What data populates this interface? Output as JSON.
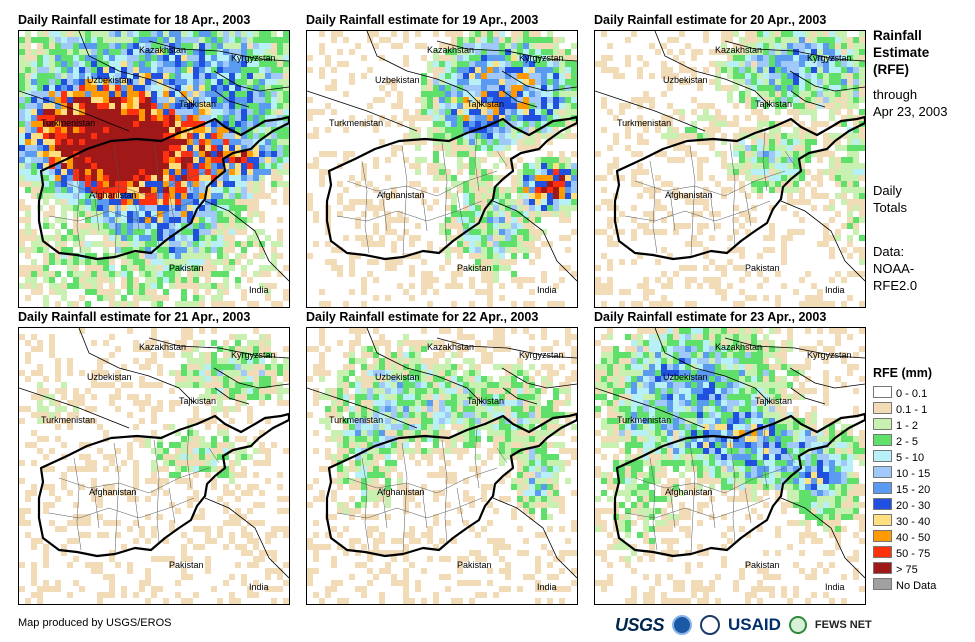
{
  "panels": [
    {
      "title": "Daily Rainfall estimate for 18 Apr., 2003",
      "pattern": "p18"
    },
    {
      "title": "Daily Rainfall estimate for 19 Apr., 2003",
      "pattern": "p19"
    },
    {
      "title": "Daily Rainfall estimate for 20 Apr., 2003",
      "pattern": "p20"
    },
    {
      "title": "Daily Rainfall estimate for 21 Apr., 2003",
      "pattern": "p21"
    },
    {
      "title": "Daily Rainfall estimate for 22 Apr., 2003",
      "pattern": "p22"
    },
    {
      "title": "Daily Rainfall estimate for 23 Apr., 2003",
      "pattern": "p23"
    }
  ],
  "map_labels": {
    "kazakhstan": "Kazakhstan",
    "kyrgyzstan": "Kyrgyzstan",
    "uzbekistan": "Uzbekistan",
    "tajikistan": "Tajikistan",
    "turkmenistan": "Turkmenistan",
    "afghanistan": "Afghanistan",
    "pakistan": "Pakistan",
    "india": "India"
  },
  "side": {
    "title_line1": "Rainfall",
    "title_line2": "Estimate",
    "title_line3": "(RFE)",
    "through": "through",
    "through_date": "Apr 23, 2003",
    "daily": "Daily",
    "totals": "Totals",
    "data_label": "Data:",
    "data_source1": "NOAA-",
    "data_source2": "RFE2.0"
  },
  "legend": {
    "title": "RFE (mm)",
    "items": [
      {
        "label": "0 - 0.1",
        "color": "#ffffff"
      },
      {
        "label": "0.1 - 1",
        "color": "#f2dcb8"
      },
      {
        "label": "1 - 2",
        "color": "#c8f0b0"
      },
      {
        "label": "2 - 5",
        "color": "#5ee06a"
      },
      {
        "label": "5 - 10",
        "color": "#b8f0f8"
      },
      {
        "label": "10 - 15",
        "color": "#a0c8f8"
      },
      {
        "label": "15 - 20",
        "color": "#5a9af0"
      },
      {
        "label": "20 - 30",
        "color": "#2050e0"
      },
      {
        "label": "30 - 40",
        "color": "#ffe080"
      },
      {
        "label": "40 - 50",
        "color": "#ff9a00"
      },
      {
        "label": "50 - 75",
        "color": "#ff3010"
      },
      {
        "label": "> 75",
        "color": "#a01818"
      },
      {
        "label": "No Data",
        "color": "#a0a0a0"
      }
    ]
  },
  "credit": "Map produced by USGS/EROS",
  "logos": {
    "usgs": "USGS",
    "usaid": "USAID",
    "fews": "FEWS NET"
  }
}
